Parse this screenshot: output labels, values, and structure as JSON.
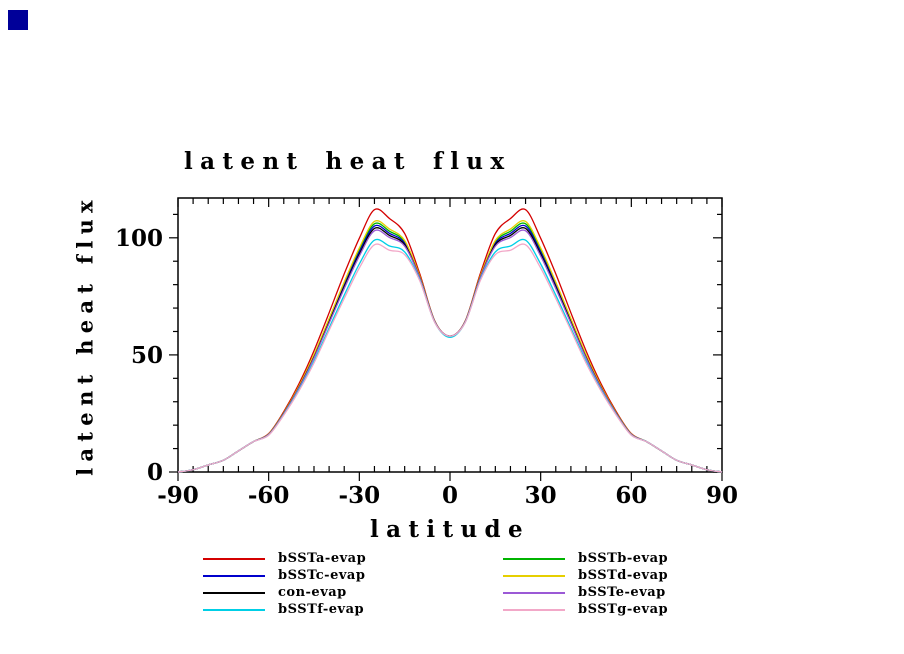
{
  "decorations": {
    "corner_square_color": "#000099"
  },
  "chart_data": {
    "type": "line",
    "title": "latent heat flux",
    "xlabel": "latitude",
    "ylabel": "latent heat flux",
    "xlim": [
      -90,
      90
    ],
    "ylim": [
      0,
      117
    ],
    "x_major_ticks": [
      -90,
      -60,
      -30,
      0,
      30,
      60,
      90
    ],
    "x_minor_step": 5,
    "y_major_ticks": [
      0,
      50,
      100
    ],
    "y_minor_step": 10,
    "grid": false,
    "legend_position": "below-axis-two-columns",
    "x": [
      -90,
      -85,
      -80,
      -75,
      -70,
      -65,
      -60,
      -55,
      -50,
      -45,
      -40,
      -35,
      -30,
      -25,
      -20,
      -15,
      -10,
      -5,
      0,
      5,
      10,
      15,
      20,
      25,
      30,
      35,
      40,
      45,
      50,
      55,
      60,
      65,
      70,
      75,
      80,
      85,
      90
    ],
    "series": [
      {
        "name": "bSSTa-evap",
        "color": "#d40000",
        "values": [
          0,
          1,
          3,
          5,
          9,
          13,
          16.4,
          25.8,
          37.6,
          51.8,
          68,
          84.6,
          99.8,
          112,
          108.2,
          101.8,
          84.6,
          64.4,
          58,
          64.4,
          84.6,
          101.8,
          108.2,
          112,
          99.8,
          84.6,
          68,
          51.8,
          37.6,
          25.8,
          16.4,
          13,
          9,
          5,
          3,
          1,
          0
        ]
      },
      {
        "name": "bSSTb-evap",
        "color": "#00b400",
        "values": [
          0,
          1,
          3,
          5,
          9,
          13,
          16.1,
          25.2,
          36.4,
          49.7,
          65,
          80.4,
          94.7,
          106,
          102.8,
          98.2,
          83.4,
          64.1,
          58,
          64.1,
          83.4,
          98.2,
          102.8,
          106,
          94.7,
          80.4,
          65,
          49.7,
          36.4,
          25.2,
          16.1,
          13,
          9,
          5,
          3,
          1,
          0
        ]
      },
      {
        "name": "bSSTc-evap",
        "color": "#0000cc",
        "values": [
          0,
          1,
          3,
          5,
          9,
          13,
          16,
          25.1,
          36.2,
          49.4,
          64.5,
          79.7,
          93.9,
          105,
          101.9,
          97.6,
          83.2,
          64.1,
          58,
          64.1,
          83.2,
          97.6,
          101.9,
          105,
          93.9,
          79.7,
          64.5,
          49.4,
          36.2,
          25.1,
          16,
          13,
          9,
          5,
          3,
          1,
          0
        ]
      },
      {
        "name": "bSSTd-evap",
        "color": "#e6cf00",
        "values": [
          0,
          1,
          3,
          5,
          9,
          13,
          16.2,
          25.3,
          36.6,
          50.1,
          65.5,
          81.1,
          95.6,
          107,
          103.7,
          98.8,
          83.6,
          64.2,
          58,
          64.2,
          83.6,
          98.8,
          103.7,
          107,
          95.6,
          81.1,
          65.5,
          50.1,
          36.6,
          25.3,
          16.2,
          13,
          9,
          5,
          3,
          1,
          0
        ]
      },
      {
        "name": "con-evap",
        "color": "#000000",
        "values": [
          0,
          1,
          3,
          5,
          9,
          13,
          16,
          25,
          36,
          49,
          64,
          79,
          93,
          104,
          101,
          97,
          83,
          64,
          58,
          64,
          83,
          97,
          101,
          104,
          93,
          79,
          64,
          49,
          36,
          25,
          16,
          13,
          9,
          5,
          3,
          1,
          0
        ]
      },
      {
        "name": "bSSTe-evap",
        "color": "#9b59d6",
        "values": [
          0,
          1,
          3,
          5,
          9,
          13,
          16,
          24.9,
          35.8,
          48.7,
          63.5,
          78.3,
          92.2,
          103,
          100.1,
          96.4,
          82.8,
          64,
          58,
          64,
          82.8,
          96.4,
          100.1,
          103,
          92.2,
          78.3,
          63.5,
          48.7,
          35.8,
          24.9,
          16,
          13,
          9,
          5,
          3,
          1,
          0
        ]
      },
      {
        "name": "bSSTf-evap",
        "color": "#00cfe6",
        "values": [
          0,
          1,
          3,
          5,
          9,
          13,
          15.8,
          24.5,
          35,
          47.3,
          61.5,
          75.5,
          88.8,
          99,
          96.5,
          94,
          82,
          63.8,
          57.5,
          63.8,
          82,
          94,
          96.5,
          99,
          88.8,
          75.5,
          61.5,
          47.3,
          35,
          24.5,
          15.8,
          13,
          9,
          5,
          3,
          1,
          0
        ]
      },
      {
        "name": "bSSTg-evap",
        "color": "#f2a8c8",
        "values": [
          0,
          1,
          3,
          5,
          9,
          13,
          15.7,
          24.3,
          34.6,
          46.6,
          60.5,
          74.1,
          87.1,
          97,
          94.7,
          92.8,
          81.6,
          63.7,
          58,
          63.7,
          81.6,
          92.8,
          94.7,
          97,
          87.1,
          74.1,
          60.5,
          46.6,
          34.6,
          24.3,
          15.7,
          13,
          9,
          5,
          3,
          1,
          0
        ]
      }
    ],
    "legend_columns": [
      [
        0,
        2,
        4,
        6
      ],
      [
        1,
        3,
        5,
        7
      ]
    ]
  }
}
